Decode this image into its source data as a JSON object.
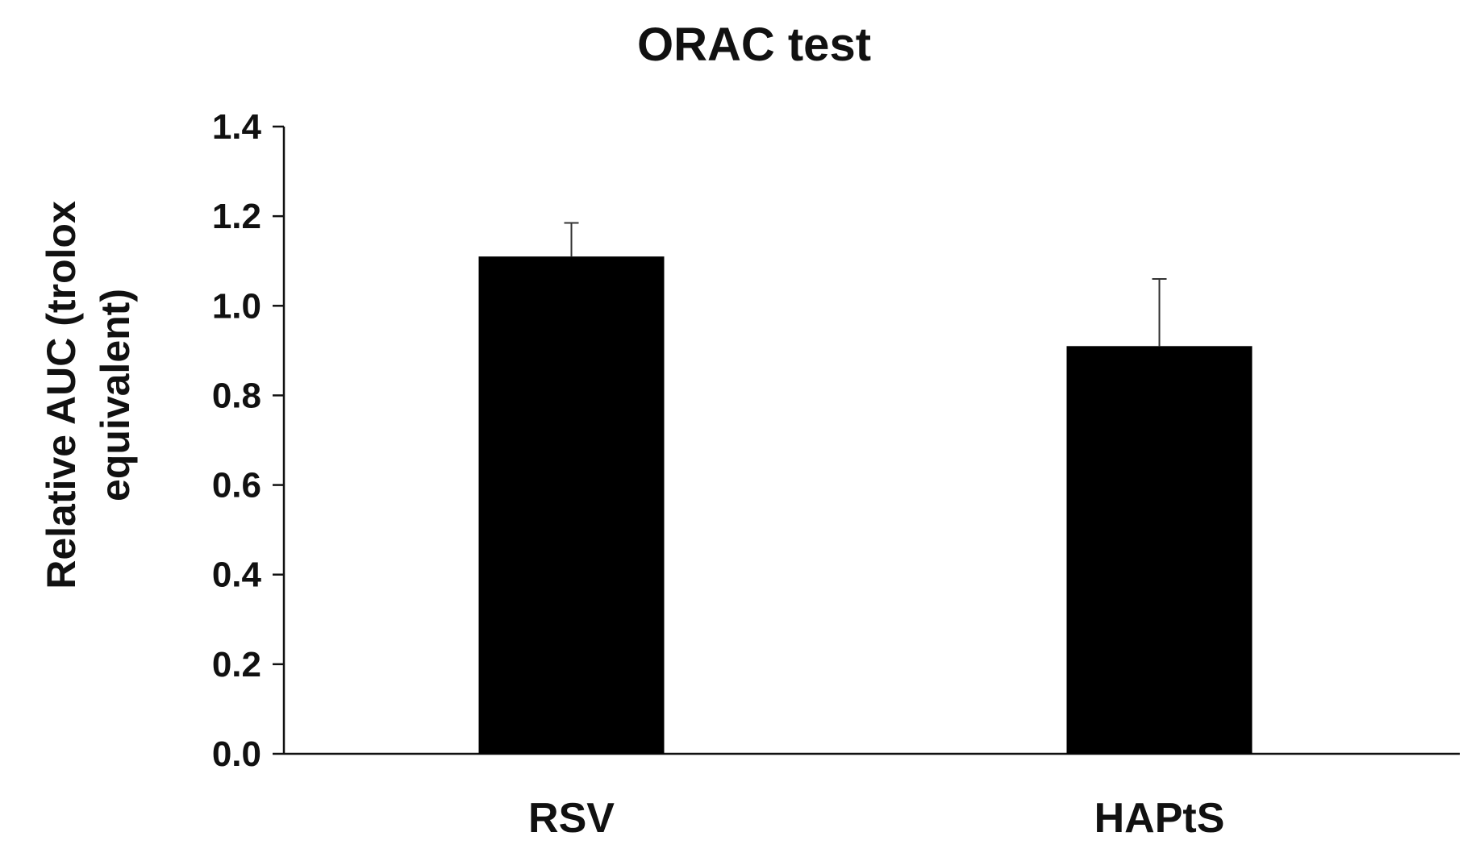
{
  "chart_data": {
    "type": "bar",
    "title": "ORAC test",
    "ylabel_lines": [
      "Relative AUC (trolox",
      "equivalent)"
    ],
    "xlabel": "",
    "categories": [
      "RSV",
      "HAPtS"
    ],
    "values": [
      1.11,
      0.91
    ],
    "error": [
      0.075,
      0.15
    ],
    "ylim": [
      0.0,
      1.4
    ],
    "yticks": [
      0.0,
      0.2,
      0.4,
      0.6,
      0.8,
      1.0,
      1.2,
      1.4
    ],
    "ytick_labels": [
      "0.0",
      "0.2",
      "0.4",
      "0.6",
      "0.8",
      "1.0",
      "1.2",
      "1.4"
    ],
    "grid": false,
    "bar_color": "#000000",
    "axis_color": "#111111",
    "error_color": "#333333"
  }
}
